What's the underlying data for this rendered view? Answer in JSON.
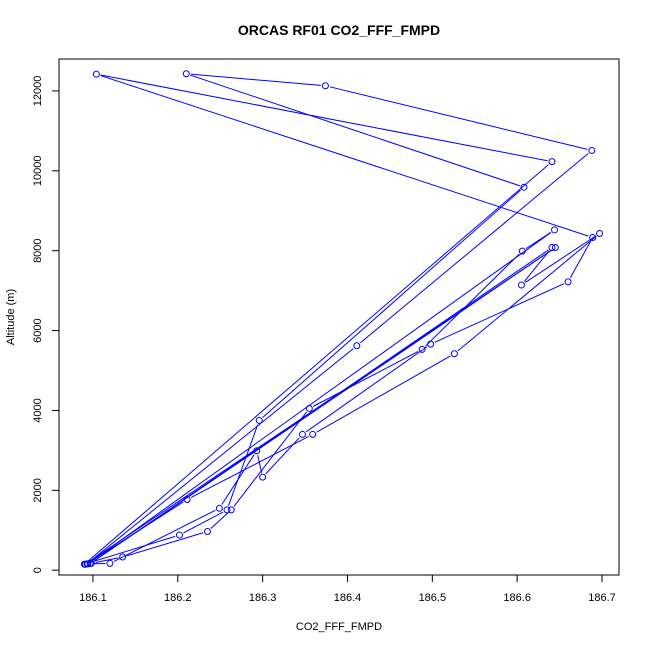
{
  "chart_data": {
    "type": "line",
    "title": "ORCAS RF01 CO2_FFF_FMPD",
    "xlabel": "CO2_FFF_FMPD",
    "ylabel": "Altitude (m)",
    "xlim": [
      186.06,
      186.72
    ],
    "ylim": [
      -120,
      12800
    ],
    "xticks": [
      "186.1",
      "186.2",
      "186.3",
      "186.4",
      "186.5",
      "186.6",
      "186.7"
    ],
    "xtick_values": [
      186.1,
      186.2,
      186.3,
      186.4,
      186.5,
      186.6,
      186.7
    ],
    "yticks": [
      "0",
      "2000",
      "4000",
      "6000",
      "8000",
      "10000",
      "12000"
    ],
    "ytick_values": [
      0,
      2000,
      4000,
      6000,
      8000,
      10000,
      12000
    ],
    "grid": false,
    "marker": "open-circle",
    "color": "#0000ff",
    "series": [
      {
        "x": [
          186.098,
          186.135,
          186.235,
          186.263,
          186.355,
          186.488,
          186.606,
          186.644,
          186.094,
          186.12,
          186.249,
          186.293,
          186.3,
          186.347,
          186.498,
          186.66,
          186.689,
          186.104,
          186.641,
          186.09,
          186.202,
          186.258,
          186.296,
          186.608,
          186.21,
          186.374,
          186.688,
          186.411,
          186.093,
          186.211,
          186.359,
          186.526,
          186.697,
          186.605,
          186.641,
          186.097,
          186.645,
          186.091
        ],
        "y": [
          170,
          330,
          970,
          1510,
          4050,
          5530,
          7990,
          8520,
          160,
          170,
          1550,
          2990,
          2330,
          3400,
          5660,
          7220,
          8330,
          12420,
          10230,
          150,
          880,
          1510,
          3750,
          9590,
          12430,
          12130,
          10510,
          5620,
          160,
          1770,
          3400,
          5420,
          8430,
          7140,
          8080,
          170,
          8080,
          150
        ]
      }
    ]
  }
}
